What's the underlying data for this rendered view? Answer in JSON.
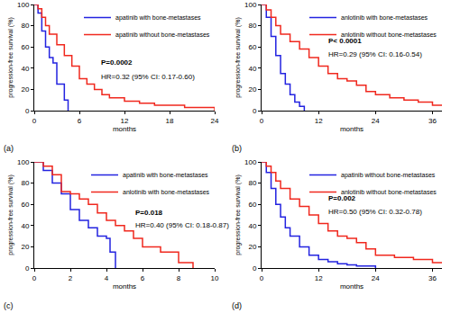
{
  "chart_data": [
    {
      "type": "line",
      "title": "(a)",
      "x_label": "months",
      "y_label": "progression-free survival (%)",
      "xlim": [
        0,
        24
      ],
      "xticks": [
        0,
        6,
        12,
        18,
        24
      ],
      "ylim": [
        0,
        100
      ],
      "yticks": [
        0,
        20,
        40,
        60,
        80,
        100
      ],
      "grid": false,
      "legend": "upper right",
      "line_style": "step",
      "annotations": [
        "P=0.0002",
        "HR=0.32 (95% CI: 0.17-0.60)"
      ],
      "series": [
        {
          "name": "apatinib with bone-metastases",
          "color": "#2323e0",
          "x": [
            0,
            0.5,
            1,
            1.5,
            2,
            2.5,
            3,
            3.5,
            4,
            4.5
          ],
          "values": [
            100,
            92,
            75,
            60,
            50,
            45,
            25,
            25,
            10,
            0
          ]
        },
        {
          "name": "apatinib without bone-metastases",
          "color": "#f0281e",
          "x": [
            0,
            0.5,
            1,
            1.5,
            2,
            3,
            4,
            5,
            6,
            7,
            8,
            9,
            10,
            12,
            14,
            16,
            18,
            20,
            22,
            24
          ],
          "values": [
            100,
            96,
            88,
            80,
            72,
            62,
            52,
            42,
            30,
            25,
            20,
            15,
            12,
            9,
            7,
            5,
            5,
            3,
            3,
            0
          ]
        }
      ]
    },
    {
      "type": "line",
      "title": "(b)",
      "x_label": "months",
      "y_label": "progression-free survival (%)",
      "xlim": [
        0,
        38
      ],
      "xticks": [
        0,
        12,
        24,
        36
      ],
      "ylim": [
        0,
        100
      ],
      "yticks": [
        0,
        20,
        40,
        60,
        80,
        100
      ],
      "grid": false,
      "legend": "upper right",
      "line_style": "step",
      "annotations": [
        "P< 0.0001",
        "HR=0.29 (95% CI: 0.16-0.54)"
      ],
      "series": [
        {
          "name": "anlotinib with bone-metastases",
          "color": "#2323e0",
          "x": [
            0,
            1,
            2,
            3,
            4,
            5,
            6,
            7,
            8,
            9
          ],
          "values": [
            100,
            88,
            70,
            52,
            35,
            25,
            15,
            8,
            4,
            0
          ]
        },
        {
          "name": "anlotinib without bone-metastases",
          "color": "#f0281e",
          "x": [
            0,
            1,
            2,
            3,
            4,
            6,
            8,
            10,
            12,
            14,
            16,
            18,
            20,
            22,
            24,
            27,
            30,
            33,
            36,
            38
          ],
          "values": [
            100,
            95,
            88,
            80,
            72,
            65,
            58,
            50,
            42,
            35,
            30,
            28,
            24,
            18,
            15,
            12,
            10,
            8,
            5,
            5
          ]
        }
      ]
    },
    {
      "type": "line",
      "title": "(c)",
      "x_label": "months",
      "y_label": "progression-free survival (%)",
      "xlim": [
        0,
        10
      ],
      "xticks": [
        0,
        2,
        4,
        6,
        8,
        10
      ],
      "ylim": [
        0,
        100
      ],
      "yticks": [
        0,
        20,
        40,
        60,
        80,
        100
      ],
      "grid": false,
      "legend": "upper right",
      "line_style": "step",
      "annotations": [
        "P=0.018",
        "HR=0.40 (95% CI: 0.18-0.87)"
      ],
      "series": [
        {
          "name": "apatinib with bone-metastases",
          "color": "#2323e0",
          "x": [
            0,
            0.5,
            1,
            1.5,
            2,
            2.5,
            3,
            3.5,
            4,
            4.2,
            4.5
          ],
          "values": [
            100,
            92,
            80,
            70,
            55,
            45,
            38,
            30,
            28,
            15,
            0
          ]
        },
        {
          "name": "anlotinib with bone-metastases",
          "color": "#f0281e",
          "x": [
            0,
            0.5,
            1,
            1.5,
            2,
            2.5,
            3,
            3.5,
            4,
            4.5,
            5,
            5.5,
            6,
            7,
            8,
            8.8
          ],
          "values": [
            100,
            96,
            88,
            72,
            70,
            65,
            60,
            52,
            45,
            40,
            35,
            28,
            20,
            15,
            5,
            0
          ]
        }
      ]
    },
    {
      "type": "line",
      "title": "(d)",
      "x_label": "months",
      "y_label": "progression-free survival (%)",
      "xlim": [
        0,
        38
      ],
      "xticks": [
        0,
        12,
        24,
        36
      ],
      "ylim": [
        0,
        100
      ],
      "yticks": [
        0,
        20,
        40,
        60,
        80,
        100
      ],
      "grid": false,
      "legend": "upper right",
      "line_style": "step",
      "annotations": [
        "P=0.002",
        "HR=0.50 (95% CI: 0.32-0.78)"
      ],
      "series": [
        {
          "name": "apatinib without bone-metastases",
          "color": "#2323e0",
          "x": [
            0,
            1,
            2,
            3,
            4,
            5,
            6,
            8,
            10,
            12,
            14,
            16,
            18,
            20,
            24
          ],
          "values": [
            100,
            90,
            75,
            60,
            48,
            38,
            30,
            20,
            12,
            8,
            6,
            4,
            3,
            2,
            0
          ]
        },
        {
          "name": "anlotinib without bone-metastases",
          "color": "#f0281e",
          "x": [
            0,
            1,
            2,
            3,
            4,
            6,
            8,
            10,
            12,
            14,
            16,
            18,
            20,
            22,
            24,
            28,
            32,
            36,
            38
          ],
          "values": [
            100,
            96,
            90,
            82,
            75,
            65,
            58,
            50,
            42,
            35,
            30,
            28,
            24,
            18,
            12,
            10,
            8,
            5,
            5
          ]
        }
      ]
    }
  ]
}
